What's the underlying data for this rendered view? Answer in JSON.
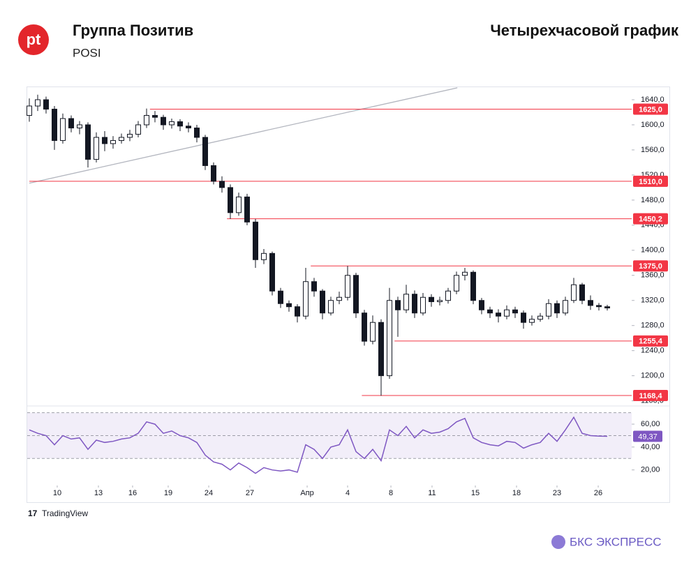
{
  "header": {
    "logo": "pt",
    "company": "Группа Позитив",
    "ticker": "POSI",
    "chart_label": "Четырехчасовой график"
  },
  "chart_data": [
    {
      "type": "candlestick",
      "open": [
        1615,
        1630,
        1640,
        1625,
        1575,
        1610,
        1595,
        1600,
        1545,
        1580,
        1570,
        1575,
        1580,
        1585,
        1600,
        1615,
        1612,
        1600,
        1605,
        1598,
        1595,
        1580,
        1535,
        1510,
        1500,
        1460,
        1485,
        1445,
        1385,
        1395,
        1335,
        1315,
        1310,
        1295,
        1350,
        1335,
        1300,
        1320,
        1325,
        1360,
        1300,
        1255,
        1285,
        1200,
        1320,
        1305,
        1330,
        1300,
        1325,
        1318,
        1320,
        1335,
        1360,
        1365,
        1320,
        1305,
        1300,
        1295,
        1305,
        1300,
        1285,
        1290,
        1295,
        1315,
        1300,
        1320,
        1345,
        1320,
        1312,
        1310
      ],
      "high": [
        1642,
        1648,
        1645,
        1630,
        1618,
        1615,
        1606,
        1604,
        1588,
        1590,
        1582,
        1586,
        1592,
        1606,
        1626,
        1622,
        1616,
        1610,
        1609,
        1604,
        1600,
        1584,
        1540,
        1518,
        1505,
        1492,
        1490,
        1450,
        1402,
        1398,
        1340,
        1320,
        1314,
        1372,
        1356,
        1338,
        1326,
        1334,
        1375,
        1364,
        1305,
        1296,
        1290,
        1340,
        1326,
        1345,
        1336,
        1332,
        1330,
        1326,
        1340,
        1366,
        1372,
        1368,
        1324,
        1310,
        1306,
        1312,
        1310,
        1304,
        1296,
        1300,
        1322,
        1320,
        1326,
        1356,
        1348,
        1328,
        1316,
        1313
      ],
      "low": [
        1605,
        1622,
        1618,
        1560,
        1570,
        1588,
        1585,
        1532,
        1540,
        1558,
        1562,
        1570,
        1574,
        1580,
        1595,
        1604,
        1592,
        1594,
        1590,
        1588,
        1572,
        1528,
        1505,
        1492,
        1450,
        1455,
        1440,
        1372,
        1378,
        1328,
        1308,
        1302,
        1285,
        1290,
        1326,
        1290,
        1296,
        1314,
        1320,
        1292,
        1248,
        1250,
        1168,
        1195,
        1262,
        1300,
        1292,
        1296,
        1310,
        1312,
        1315,
        1330,
        1352,
        1314,
        1298,
        1292,
        1285,
        1290,
        1292,
        1275,
        1280,
        1286,
        1290,
        1292,
        1296,
        1316,
        1314,
        1305,
        1304,
        1304
      ],
      "close": [
        1630,
        1640,
        1625,
        1575,
        1610,
        1595,
        1600,
        1545,
        1580,
        1570,
        1575,
        1580,
        1585,
        1600,
        1615,
        1612,
        1600,
        1605,
        1598,
        1595,
        1580,
        1535,
        1510,
        1500,
        1460,
        1485,
        1445,
        1385,
        1395,
        1335,
        1315,
        1310,
        1295,
        1350,
        1335,
        1300,
        1320,
        1325,
        1360,
        1300,
        1255,
        1285,
        1200,
        1320,
        1305,
        1330,
        1300,
        1325,
        1318,
        1320,
        1335,
        1360,
        1365,
        1320,
        1305,
        1300,
        1295,
        1305,
        1300,
        1285,
        1290,
        1295,
        1315,
        1300,
        1320,
        1345,
        1320,
        1312,
        1310,
        1308
      ],
      "up_color": "#ffffff",
      "down_color": "#131722",
      "xlim": [
        0,
        69
      ],
      "xticks": [
        {
          "value": 3.33,
          "label": "10"
        },
        {
          "value": 8.25,
          "label": "13"
        },
        {
          "value": 12.33,
          "label": "16"
        },
        {
          "value": 16.58,
          "label": "19"
        },
        {
          "value": 21.42,
          "label": "24"
        },
        {
          "value": 26.33,
          "label": "27"
        },
        {
          "value": 33.17,
          "label": "Апр"
        },
        {
          "value": 38,
          "label": "4"
        },
        {
          "value": 43.17,
          "label": "8"
        },
        {
          "value": 48.08,
          "label": "11"
        },
        {
          "value": 53.25,
          "label": "15"
        },
        {
          "value": 58.17,
          "label": "18"
        },
        {
          "value": 63,
          "label": "23"
        },
        {
          "value": 67.92,
          "label": "26"
        }
      ],
      "ylim": [
        1154,
        1660
      ],
      "yticks": [
        {
          "value": 1160,
          "label": "1160,0"
        },
        {
          "value": 1200,
          "label": "1200,0"
        },
        {
          "value": 1240,
          "label": "1240,0"
        },
        {
          "value": 1280,
          "label": "1280,0"
        },
        {
          "value": 1320,
          "label": "1320,0"
        },
        {
          "value": 1360,
          "label": "1360,0"
        },
        {
          "value": 1400,
          "label": "1400,0"
        },
        {
          "value": 1440,
          "label": "1440,0"
        },
        {
          "value": 1480,
          "label": "1480,0"
        },
        {
          "value": 1520,
          "label": "1520,0"
        },
        {
          "value": 1560,
          "label": "1560,0"
        },
        {
          "value": 1600,
          "label": "1600,0"
        },
        {
          "value": 1640,
          "label": "1640,0"
        }
      ],
      "levels": [
        {
          "value": 1625,
          "label": "1625,0",
          "from": 14.4
        },
        {
          "value": 1510,
          "label": "1510,0",
          "from": 0
        },
        {
          "value": 1450.2,
          "label": "1450,2",
          "from": 23.6
        },
        {
          "value": 1375,
          "label": "1375,0",
          "from": 33.6
        },
        {
          "value": 1255.4,
          "label": "1255,4",
          "from": 43.6
        },
        {
          "value": 1168.4,
          "label": "1168,4",
          "from": 39.7
        }
      ],
      "level_color": "#f23645",
      "trendline": {
        "x": [
          0,
          51.1
        ],
        "y": [
          1507,
          1659
        ],
        "color": "#b2b5be"
      }
    },
    {
      "type": "line",
      "values": [
        55,
        52,
        50,
        42,
        50,
        47,
        48,
        38,
        46,
        44,
        45,
        47,
        48,
        52,
        62,
        60,
        52,
        54,
        50,
        48,
        44,
        33,
        27,
        25,
        20,
        26,
        22,
        17,
        22,
        20,
        19,
        20,
        18,
        42,
        38,
        30,
        40,
        42,
        55,
        36,
        30,
        38,
        28,
        55,
        50,
        58,
        48,
        55,
        52,
        53,
        56,
        62,
        65,
        48,
        44,
        42,
        41,
        45,
        44,
        39,
        42,
        44,
        52,
        45,
        55,
        66,
        52,
        50,
        49.5,
        49.37
      ],
      "current": {
        "value": 49.37,
        "label": "49,37"
      },
      "color": "#7e57c2",
      "xlim": [
        0,
        69
      ],
      "ylim": [
        -7,
        71
      ],
      "yticks": [
        {
          "value": 20,
          "label": "20,00"
        },
        {
          "value": 40,
          "label": "40,00"
        },
        {
          "value": 60,
          "label": "60,00"
        }
      ],
      "levels": [
        30,
        50,
        70
      ]
    }
  ],
  "footer": {
    "source": "TradingView",
    "brand": "БКС ЭКСПРЕСС"
  }
}
